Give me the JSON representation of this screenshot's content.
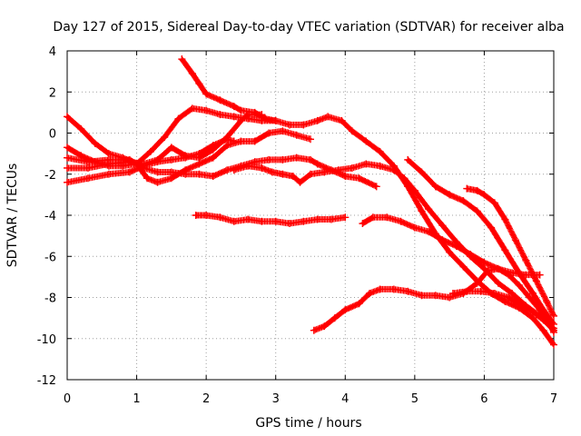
{
  "chart_data": {
    "type": "scatter",
    "title": "Day 127 of 2015, Sidereal Day-to-day VTEC variation (SDTVAR) for receiver alba",
    "xlabel": "GPS time / hours",
    "ylabel": "SDTVAR / TECUs",
    "xlim": [
      0,
      7
    ],
    "ylim": [
      -12,
      4
    ],
    "xticks": [
      0,
      1,
      2,
      3,
      4,
      5,
      6,
      7
    ],
    "yticks": [
      -12,
      -10,
      -8,
      -6,
      -4,
      -2,
      0,
      2,
      4
    ],
    "grid": true,
    "legend": "none",
    "marker_color": "#ff0000",
    "series": [
      {
        "name": "s1",
        "points": [
          [
            0,
            0.8
          ],
          [
            0.2,
            0.2
          ],
          [
            0.4,
            -0.5
          ],
          [
            0.6,
            -1.0
          ],
          [
            0.8,
            -1.2
          ],
          [
            1.0,
            -1.5
          ],
          [
            1.15,
            -2.2
          ],
          [
            1.3,
            -2.4
          ],
          [
            1.5,
            -2.2
          ],
          [
            1.7,
            -1.8
          ],
          [
            1.9,
            -1.5
          ],
          [
            2.1,
            -1.2
          ],
          [
            2.3,
            -0.6
          ],
          [
            2.5,
            -0.4
          ],
          [
            2.7,
            -0.4
          ],
          [
            2.9,
            0.0
          ],
          [
            3.1,
            0.1
          ],
          [
            3.3,
            -0.1
          ],
          [
            3.5,
            -0.3
          ]
        ]
      },
      {
        "name": "s2",
        "points": [
          [
            0,
            -0.7
          ],
          [
            0.2,
            -1.1
          ],
          [
            0.4,
            -1.4
          ],
          [
            0.6,
            -1.6
          ],
          [
            0.8,
            -1.6
          ],
          [
            1.0,
            -1.5
          ],
          [
            1.2,
            -0.9
          ],
          [
            1.4,
            -0.2
          ],
          [
            1.6,
            0.7
          ],
          [
            1.8,
            1.2
          ],
          [
            2.0,
            1.1
          ],
          [
            2.2,
            0.9
          ],
          [
            2.4,
            0.8
          ],
          [
            2.6,
            0.7
          ],
          [
            2.8,
            0.6
          ],
          [
            3.0,
            0.6
          ],
          [
            3.2,
            0.4
          ],
          [
            3.4,
            0.4
          ],
          [
            3.6,
            0.6
          ],
          [
            3.75,
            0.8
          ],
          [
            3.95,
            0.6
          ],
          [
            4.1,
            0.1
          ],
          [
            4.3,
            -0.4
          ],
          [
            4.5,
            -0.9
          ],
          [
            4.7,
            -1.6
          ],
          [
            4.9,
            -2.6
          ],
          [
            5.1,
            -3.8
          ],
          [
            5.3,
            -4.9
          ],
          [
            5.5,
            -5.8
          ],
          [
            5.7,
            -6.5
          ],
          [
            5.9,
            -7.2
          ],
          [
            6.1,
            -7.8
          ],
          [
            6.3,
            -8.2
          ],
          [
            6.5,
            -8.5
          ],
          [
            6.7,
            -9.0
          ],
          [
            6.85,
            -9.6
          ],
          [
            7.0,
            -10.3
          ]
        ]
      },
      {
        "name": "s3",
        "points": [
          [
            0,
            -1.2
          ],
          [
            0.3,
            -1.4
          ],
          [
            0.6,
            -1.3
          ],
          [
            0.9,
            -1.3
          ],
          [
            1.1,
            -1.7
          ],
          [
            1.3,
            -1.9
          ],
          [
            1.5,
            -1.9
          ],
          [
            1.7,
            -2.0
          ],
          [
            1.9,
            -2.0
          ],
          [
            2.1,
            -2.1
          ],
          [
            2.3,
            -1.8
          ],
          [
            2.5,
            -1.6
          ],
          [
            2.7,
            -1.4
          ],
          [
            2.9,
            -1.3
          ],
          [
            3.1,
            -1.3
          ],
          [
            3.3,
            -1.2
          ],
          [
            3.5,
            -1.3
          ],
          [
            3.6,
            -1.5
          ],
          [
            3.8,
            -1.8
          ],
          [
            4.0,
            -2.1
          ],
          [
            4.2,
            -2.2
          ],
          [
            4.45,
            -2.6
          ]
        ]
      },
      {
        "name": "s4",
        "points": [
          [
            0,
            -1.7
          ],
          [
            0.3,
            -1.7
          ],
          [
            0.6,
            -1.5
          ],
          [
            0.9,
            -1.4
          ],
          [
            1.1,
            -1.5
          ],
          [
            1.3,
            -1.3
          ],
          [
            1.5,
            -0.7
          ],
          [
            1.7,
            -1.1
          ],
          [
            1.9,
            -1.2
          ],
          [
            2.1,
            -0.8
          ],
          [
            2.3,
            -0.2
          ],
          [
            2.5,
            0.6
          ],
          [
            2.6,
            0.9
          ],
          [
            2.8,
            0.9
          ]
        ]
      },
      {
        "name": "s5",
        "points": [
          [
            0,
            -2.4
          ],
          [
            0.3,
            -2.2
          ],
          [
            0.6,
            -2.0
          ],
          [
            0.9,
            -1.9
          ],
          [
            1.1,
            -1.6
          ],
          [
            1.3,
            -1.4
          ],
          [
            1.5,
            -1.3
          ],
          [
            1.7,
            -1.2
          ],
          [
            1.9,
            -1.0
          ],
          [
            2.1,
            -0.6
          ],
          [
            2.3,
            -0.3
          ],
          [
            2.4,
            -0.4
          ]
        ]
      },
      {
        "name": "s6",
        "points": [
          [
            1.65,
            3.6
          ],
          [
            1.8,
            2.9
          ],
          [
            1.9,
            2.4
          ],
          [
            2.0,
            1.9
          ],
          [
            2.2,
            1.6
          ],
          [
            2.4,
            1.3
          ],
          [
            2.5,
            1.1
          ],
          [
            2.7,
            1.0
          ],
          [
            2.85,
            0.7
          ],
          [
            3.0,
            0.6
          ]
        ]
      },
      {
        "name": "s7",
        "points": [
          [
            2.4,
            -1.8
          ],
          [
            2.6,
            -1.6
          ],
          [
            2.8,
            -1.7
          ],
          [
            2.95,
            -1.9
          ],
          [
            3.1,
            -2.0
          ],
          [
            3.25,
            -2.1
          ],
          [
            3.35,
            -2.4
          ],
          [
            3.5,
            -2.0
          ],
          [
            3.7,
            -1.9
          ],
          [
            3.9,
            -1.8
          ],
          [
            4.1,
            -1.7
          ],
          [
            4.3,
            -1.5
          ],
          [
            4.5,
            -1.6
          ],
          [
            4.7,
            -1.8
          ],
          [
            4.85,
            -2.2
          ],
          [
            5.0,
            -2.8
          ],
          [
            5.2,
            -3.7
          ],
          [
            5.4,
            -4.5
          ],
          [
            5.6,
            -5.3
          ],
          [
            5.8,
            -6.0
          ],
          [
            6.0,
            -6.6
          ],
          [
            6.2,
            -7.3
          ],
          [
            6.4,
            -7.8
          ],
          [
            6.6,
            -8.4
          ],
          [
            6.8,
            -8.9
          ],
          [
            7.0,
            -9.6
          ]
        ]
      },
      {
        "name": "s8",
        "points": [
          [
            1.85,
            -4.0
          ],
          [
            2.0,
            -4.0
          ],
          [
            2.2,
            -4.1
          ],
          [
            2.4,
            -4.3
          ],
          [
            2.6,
            -4.2
          ],
          [
            2.8,
            -4.3
          ],
          [
            3.0,
            -4.3
          ],
          [
            3.2,
            -4.4
          ],
          [
            3.4,
            -4.3
          ],
          [
            3.6,
            -4.2
          ],
          [
            3.8,
            -4.2
          ],
          [
            4.0,
            -4.1
          ]
        ]
      },
      {
        "name": "s9",
        "points": [
          [
            4.25,
            -4.4
          ],
          [
            4.4,
            -4.1
          ],
          [
            4.6,
            -4.1
          ],
          [
            4.8,
            -4.3
          ],
          [
            5.0,
            -4.6
          ],
          [
            5.2,
            -4.8
          ],
          [
            5.4,
            -5.2
          ],
          [
            5.6,
            -5.5
          ],
          [
            5.8,
            -5.9
          ],
          [
            6.0,
            -6.3
          ],
          [
            6.2,
            -6.6
          ],
          [
            6.4,
            -6.8
          ],
          [
            6.6,
            -6.9
          ],
          [
            6.8,
            -6.9
          ]
        ]
      },
      {
        "name": "s10",
        "points": [
          [
            5.75,
            -2.7
          ],
          [
            5.9,
            -2.8
          ],
          [
            6.0,
            -3.0
          ],
          [
            6.15,
            -3.4
          ],
          [
            6.3,
            -4.2
          ],
          [
            6.45,
            -5.2
          ],
          [
            6.6,
            -6.2
          ],
          [
            6.75,
            -7.2
          ],
          [
            6.9,
            -8.2
          ],
          [
            7.0,
            -8.9
          ]
        ]
      },
      {
        "name": "s11",
        "points": [
          [
            4.9,
            -1.3
          ],
          [
            5.1,
            -1.9
          ],
          [
            5.3,
            -2.6
          ],
          [
            5.5,
            -3.0
          ],
          [
            5.7,
            -3.3
          ],
          [
            5.9,
            -3.8
          ],
          [
            6.1,
            -4.6
          ],
          [
            6.3,
            -5.7
          ],
          [
            6.5,
            -6.8
          ],
          [
            6.7,
            -7.8
          ],
          [
            6.85,
            -8.6
          ],
          [
            7.0,
            -9.3
          ]
        ]
      },
      {
        "name": "s12",
        "points": [
          [
            3.55,
            -9.6
          ],
          [
            3.7,
            -9.4
          ],
          [
            3.85,
            -9.0
          ],
          [
            4.0,
            -8.6
          ],
          [
            4.2,
            -8.3
          ],
          [
            4.35,
            -7.8
          ],
          [
            4.5,
            -7.6
          ],
          [
            4.7,
            -7.6
          ],
          [
            4.9,
            -7.7
          ],
          [
            5.1,
            -7.9
          ],
          [
            5.3,
            -7.9
          ],
          [
            5.5,
            -8.0
          ],
          [
            5.7,
            -7.8
          ],
          [
            5.9,
            -7.3
          ],
          [
            6.05,
            -6.7
          ],
          [
            6.2,
            -6.6
          ],
          [
            6.35,
            -6.9
          ],
          [
            6.5,
            -7.4
          ],
          [
            6.65,
            -8.0
          ],
          [
            6.8,
            -8.6
          ],
          [
            6.95,
            -9.3
          ],
          [
            7.0,
            -9.7
          ]
        ]
      },
      {
        "name": "s13",
        "points": [
          [
            5.55,
            -7.8
          ],
          [
            5.75,
            -7.7
          ],
          [
            5.95,
            -7.7
          ],
          [
            6.15,
            -7.8
          ],
          [
            6.35,
            -8.0
          ],
          [
            6.5,
            -8.3
          ],
          [
            6.7,
            -8.7
          ],
          [
            6.85,
            -9.1
          ],
          [
            7.0,
            -9.5
          ]
        ]
      }
    ]
  }
}
